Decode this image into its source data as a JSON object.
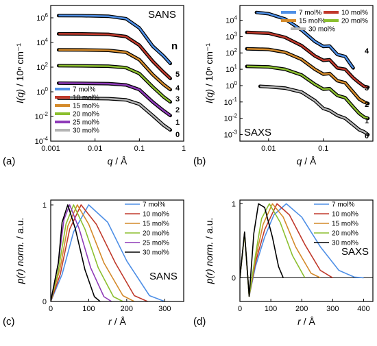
{
  "chart_data": [
    {
      "type": "line",
      "panel_label": "(a)",
      "tag": "SANS",
      "xlabel_i": "q",
      "xlabel_unit": " / Å",
      "ylabel_i": "I(q)",
      "ylabel_unit": " / 10ⁿ cm⁻¹",
      "xscale": "log",
      "yscale": "log",
      "xlim": [
        0.001,
        1
      ],
      "ylim": [
        0.0001,
        10000000
      ],
      "x_ticks": [
        {
          "v": 0.001,
          "t": "0.001"
        },
        {
          "v": 0.01,
          "t": "0.01"
        },
        {
          "v": 0.1,
          "t": "0.1"
        },
        {
          "v": 1,
          "t": "1"
        }
      ],
      "y_ticks": [
        {
          "v": 0.0001,
          "b": "10",
          "e": "-4"
        },
        {
          "v": 0.01,
          "b": "10",
          "e": "-2"
        },
        {
          "v": 1,
          "b": "10",
          "e": "0"
        },
        {
          "v": 100,
          "b": "10",
          "e": "2"
        },
        {
          "v": 10000,
          "b": "10",
          "e": "4"
        },
        {
          "v": 1000000,
          "b": "10",
          "e": "6"
        }
      ],
      "n_header": "n",
      "n_labels": [
        "5",
        "4",
        "3",
        "2",
        "1",
        "0"
      ],
      "legend_placement": "bottom-left",
      "series": [
        {
          "name": "7 mol%",
          "color": "#4e8fe6",
          "plateau": 1500000,
          "n": "5",
          "x": [
            0.0015,
            0.005,
            0.02,
            0.05,
            0.1,
            0.2,
            0.35,
            0.5
          ],
          "y": [
            1500000,
            1480000,
            1350000,
            850000,
            150000,
            5000,
            800,
            200
          ]
        },
        {
          "name": "10 mol%",
          "color": "#c0392b",
          "plateau": 50000,
          "n": "4",
          "x": [
            0.0015,
            0.005,
            0.02,
            0.05,
            0.1,
            0.2,
            0.35,
            0.5
          ],
          "y": [
            50000,
            49500,
            46000,
            30000,
            6000,
            300,
            40,
            12
          ]
        },
        {
          "name": "15 mol%",
          "color": "#d48a2a",
          "plateau": 2500,
          "n": "3",
          "x": [
            0.0015,
            0.005,
            0.02,
            0.05,
            0.1,
            0.2,
            0.35,
            0.5
          ],
          "y": [
            2500,
            2480,
            2300,
            1600,
            400,
            25,
            4,
            1.5
          ]
        },
        {
          "name": "20 mol%",
          "color": "#8bbf2e",
          "plateau": 130,
          "n": "2",
          "x": [
            0.0015,
            0.005,
            0.02,
            0.05,
            0.1,
            0.2,
            0.35,
            0.5
          ],
          "y": [
            130,
            128,
            120,
            90,
            30,
            2.5,
            0.4,
            0.15
          ]
        },
        {
          "name": "25 mol%",
          "color": "#8e3ab8",
          "plateau": 5,
          "n": "1",
          "x": [
            0.0015,
            0.005,
            0.02,
            0.05,
            0.1,
            0.2,
            0.35,
            0.5
          ],
          "y": [
            5,
            4.9,
            4.6,
            3.6,
            1.5,
            0.15,
            0.03,
            0.012
          ]
        },
        {
          "name": "30 mol%",
          "color": "#b4b4b4",
          "plateau": 0.3,
          "n": "0",
          "x": [
            0.0015,
            0.005,
            0.02,
            0.05,
            0.1,
            0.2,
            0.35,
            0.5
          ],
          "y": [
            0.3,
            0.295,
            0.28,
            0.22,
            0.1,
            0.012,
            0.002,
            0.0008
          ]
        }
      ]
    },
    {
      "type": "line",
      "panel_label": "(b)",
      "tag": "SAXS",
      "xlabel_i": "q",
      "xlabel_unit": " / Å",
      "ylabel_i": "I(q)",
      "ylabel_unit": " / 10ⁿ cm⁻¹",
      "xscale": "log",
      "yscale": "log",
      "xlim": [
        0.003,
        0.8
      ],
      "ylim": [
        0.0004,
        80000
      ],
      "x_ticks": [
        {
          "v": 0.01,
          "t": "0.01"
        },
        {
          "v": 0.1,
          "t": "0.1"
        }
      ],
      "y_ticks": [
        {
          "v": 0.001,
          "b": "10",
          "e": "-3"
        },
        {
          "v": 0.01,
          "b": "10",
          "e": "-2"
        },
        {
          "v": 0.1,
          "b": "10",
          "e": "-1"
        },
        {
          "v": 1,
          "b": "10",
          "e": "0"
        },
        {
          "v": 10,
          "b": "10",
          "e": "1"
        },
        {
          "v": 100,
          "b": "10",
          "e": "2"
        },
        {
          "v": 1000,
          "b": "10",
          "e": "3"
        },
        {
          "v": 10000,
          "b": "10",
          "e": "4"
        }
      ],
      "n_labels": [
        "4",
        "3",
        "2",
        "1",
        "0"
      ],
      "legend_placement": "top-right",
      "series": [
        {
          "name": "7 mol%",
          "color": "#4e8fe6",
          "n": "4",
          "x": [
            0.006,
            0.01,
            0.02,
            0.04,
            0.07,
            0.1,
            0.13,
            0.18,
            0.25,
            0.3,
            0.35
          ],
          "y": [
            30000,
            25000,
            12000,
            2500,
            500,
            250,
            260,
            80,
            60,
            25,
            12
          ]
        },
        {
          "name": "10 mol%",
          "color": "#c0392b",
          "n": "3",
          "x": [
            0.004,
            0.01,
            0.02,
            0.04,
            0.07,
            0.1,
            0.13,
            0.18,
            0.25,
            0.35,
            0.45,
            0.55,
            0.65
          ],
          "y": [
            1800,
            1600,
            900,
            280,
            65,
            35,
            38,
            12,
            10,
            3,
            1.5,
            0.9,
            0.8
          ]
        },
        {
          "name": "15 mol%",
          "color": "#d48a2a",
          "n": "2",
          "x": [
            0.004,
            0.01,
            0.02,
            0.04,
            0.07,
            0.1,
            0.13,
            0.18,
            0.25,
            0.35,
            0.45,
            0.55,
            0.65
          ],
          "y": [
            180,
            165,
            110,
            40,
            10,
            5,
            5.5,
            2,
            1.5,
            0.4,
            0.15,
            0.1,
            0.08
          ]
        },
        {
          "name": "20 mol%",
          "color": "#8bbf2e",
          "n": "1",
          "x": [
            0.004,
            0.01,
            0.02,
            0.04,
            0.07,
            0.1,
            0.13,
            0.18,
            0.25,
            0.35,
            0.45,
            0.55,
            0.65
          ],
          "y": [
            15,
            14,
            10,
            4.5,
            1.2,
            0.6,
            0.65,
            0.25,
            0.18,
            0.05,
            0.02,
            0.012,
            0.01
          ]
        },
        {
          "name": "30 mol%",
          "color": "#b4b4b4",
          "n": "0",
          "x": [
            0.007,
            0.01,
            0.02,
            0.04,
            0.07,
            0.1,
            0.13,
            0.18,
            0.25,
            0.35,
            0.45,
            0.55,
            0.65
          ],
          "y": [
            0.9,
            0.85,
            0.7,
            0.4,
            0.12,
            0.04,
            0.03,
            0.015,
            0.01,
            0.004,
            0.002,
            0.0015,
            0.001
          ]
        }
      ]
    },
    {
      "type": "line",
      "panel_label": "(c)",
      "tag": "SANS",
      "xlabel_i": "r",
      "xlabel_unit": " / Å",
      "ylabel_i": "p(r)",
      "ylabel_unit": " norm.",
      "ylabel_unit_i": " / a.u.",
      "xlim": [
        0,
        350
      ],
      "ylim": [
        0,
        1.05
      ],
      "x_ticks": [
        {
          "v": 0,
          "t": "0"
        },
        {
          "v": 100,
          "t": "100"
        },
        {
          "v": 200,
          "t": "200"
        },
        {
          "v": 300,
          "t": "300"
        }
      ],
      "y_ticks": [
        {
          "v": 0,
          "t": "0"
        },
        {
          "v": 1,
          "t": "1"
        }
      ],
      "legend_placement": "top-right",
      "series": [
        {
          "name": "7 mol%",
          "color": "#4e8fe6",
          "x": [
            0,
            30,
            60,
            100,
            150,
            200,
            260,
            300
          ],
          "y": [
            0,
            0.28,
            0.72,
            1.0,
            0.82,
            0.42,
            0.06,
            0
          ]
        },
        {
          "name": "10 mol%",
          "color": "#c0392b",
          "x": [
            0,
            25,
            50,
            80,
            120,
            170,
            220,
            255
          ],
          "y": [
            0,
            0.28,
            0.75,
            1.0,
            0.8,
            0.4,
            0.06,
            0
          ]
        },
        {
          "name": "15 mol%",
          "color": "#d48a2a",
          "x": [
            0,
            25,
            45,
            70,
            100,
            140,
            190,
            220
          ],
          "y": [
            0,
            0.35,
            0.78,
            1.0,
            0.8,
            0.4,
            0.06,
            0
          ]
        },
        {
          "name": "20 mol%",
          "color": "#8bbf2e",
          "x": [
            0,
            20,
            40,
            60,
            90,
            125,
            165,
            190
          ],
          "y": [
            0,
            0.32,
            0.8,
            1.0,
            0.75,
            0.35,
            0.05,
            0
          ]
        },
        {
          "name": "25 mol%",
          "color": "#8e3ab8",
          "x": [
            0,
            20,
            35,
            50,
            75,
            105,
            140,
            160
          ],
          "y": [
            0,
            0.4,
            0.85,
            1.0,
            0.75,
            0.35,
            0.05,
            0
          ]
        },
        {
          "name": "30 mol%",
          "color": "#000000",
          "x": [
            0,
            20,
            30,
            45,
            65,
            90,
            115,
            130
          ],
          "y": [
            0,
            0.4,
            0.82,
            1.0,
            0.75,
            0.33,
            0.05,
            0
          ]
        }
      ]
    },
    {
      "type": "line",
      "panel_label": "(d)",
      "tag": "SAXS",
      "xlabel_i": "r",
      "xlabel_unit": " / Å",
      "ylabel_i": "p(r)",
      "ylabel_unit": " norm.",
      "ylabel_unit_i": " / a.u.",
      "xlim": [
        0,
        430
      ],
      "ylim": [
        -0.32,
        1.05
      ],
      "x_ticks": [
        {
          "v": 0,
          "t": "0"
        },
        {
          "v": 100,
          "t": "100"
        },
        {
          "v": 200,
          "t": "200"
        },
        {
          "v": 300,
          "t": "300"
        },
        {
          "v": 400,
          "t": "400"
        }
      ],
      "y_ticks": [
        {
          "v": 0,
          "t": "0"
        },
        {
          "v": 1,
          "t": "1"
        }
      ],
      "legend_placement": "top-right",
      "series": [
        {
          "name": "7 mol%",
          "color": "#4e8fe6",
          "x": [
            0,
            15,
            30,
            50,
            80,
            110,
            150,
            200,
            260,
            320,
            370,
            400
          ],
          "y": [
            0,
            0.6,
            -0.25,
            0.15,
            0.55,
            0.85,
            1.0,
            0.82,
            0.42,
            0.1,
            0.01,
            0
          ]
        },
        {
          "name": "10 mol%",
          "color": "#c0392b",
          "x": [
            0,
            15,
            30,
            50,
            80,
            120,
            160,
            210,
            260,
            300
          ],
          "y": [
            0,
            0.6,
            -0.25,
            0.2,
            0.65,
            1.0,
            0.85,
            0.45,
            0.1,
            0
          ]
        },
        {
          "name": "15 mol%",
          "color": "#d48a2a",
          "x": [
            0,
            15,
            30,
            50,
            75,
            105,
            140,
            180,
            230,
            260
          ],
          "y": [
            0,
            0.6,
            -0.25,
            0.25,
            0.72,
            1.0,
            0.82,
            0.42,
            0.06,
            0
          ]
        },
        {
          "name": "20 mol%",
          "color": "#8bbf2e",
          "x": [
            0,
            15,
            30,
            50,
            70,
            95,
            130,
            170,
            210
          ],
          "y": [
            0,
            0.6,
            -0.25,
            0.3,
            0.8,
            1.0,
            0.75,
            0.3,
            0
          ]
        },
        {
          "name": "30 mol%",
          "color": "#000000",
          "x": [
            0,
            15,
            30,
            45,
            60,
            80,
            105,
            125,
            140
          ],
          "y": [
            0,
            0.62,
            -0.25,
            0.6,
            1.0,
            0.95,
            0.55,
            0.15,
            0
          ]
        }
      ]
    }
  ]
}
